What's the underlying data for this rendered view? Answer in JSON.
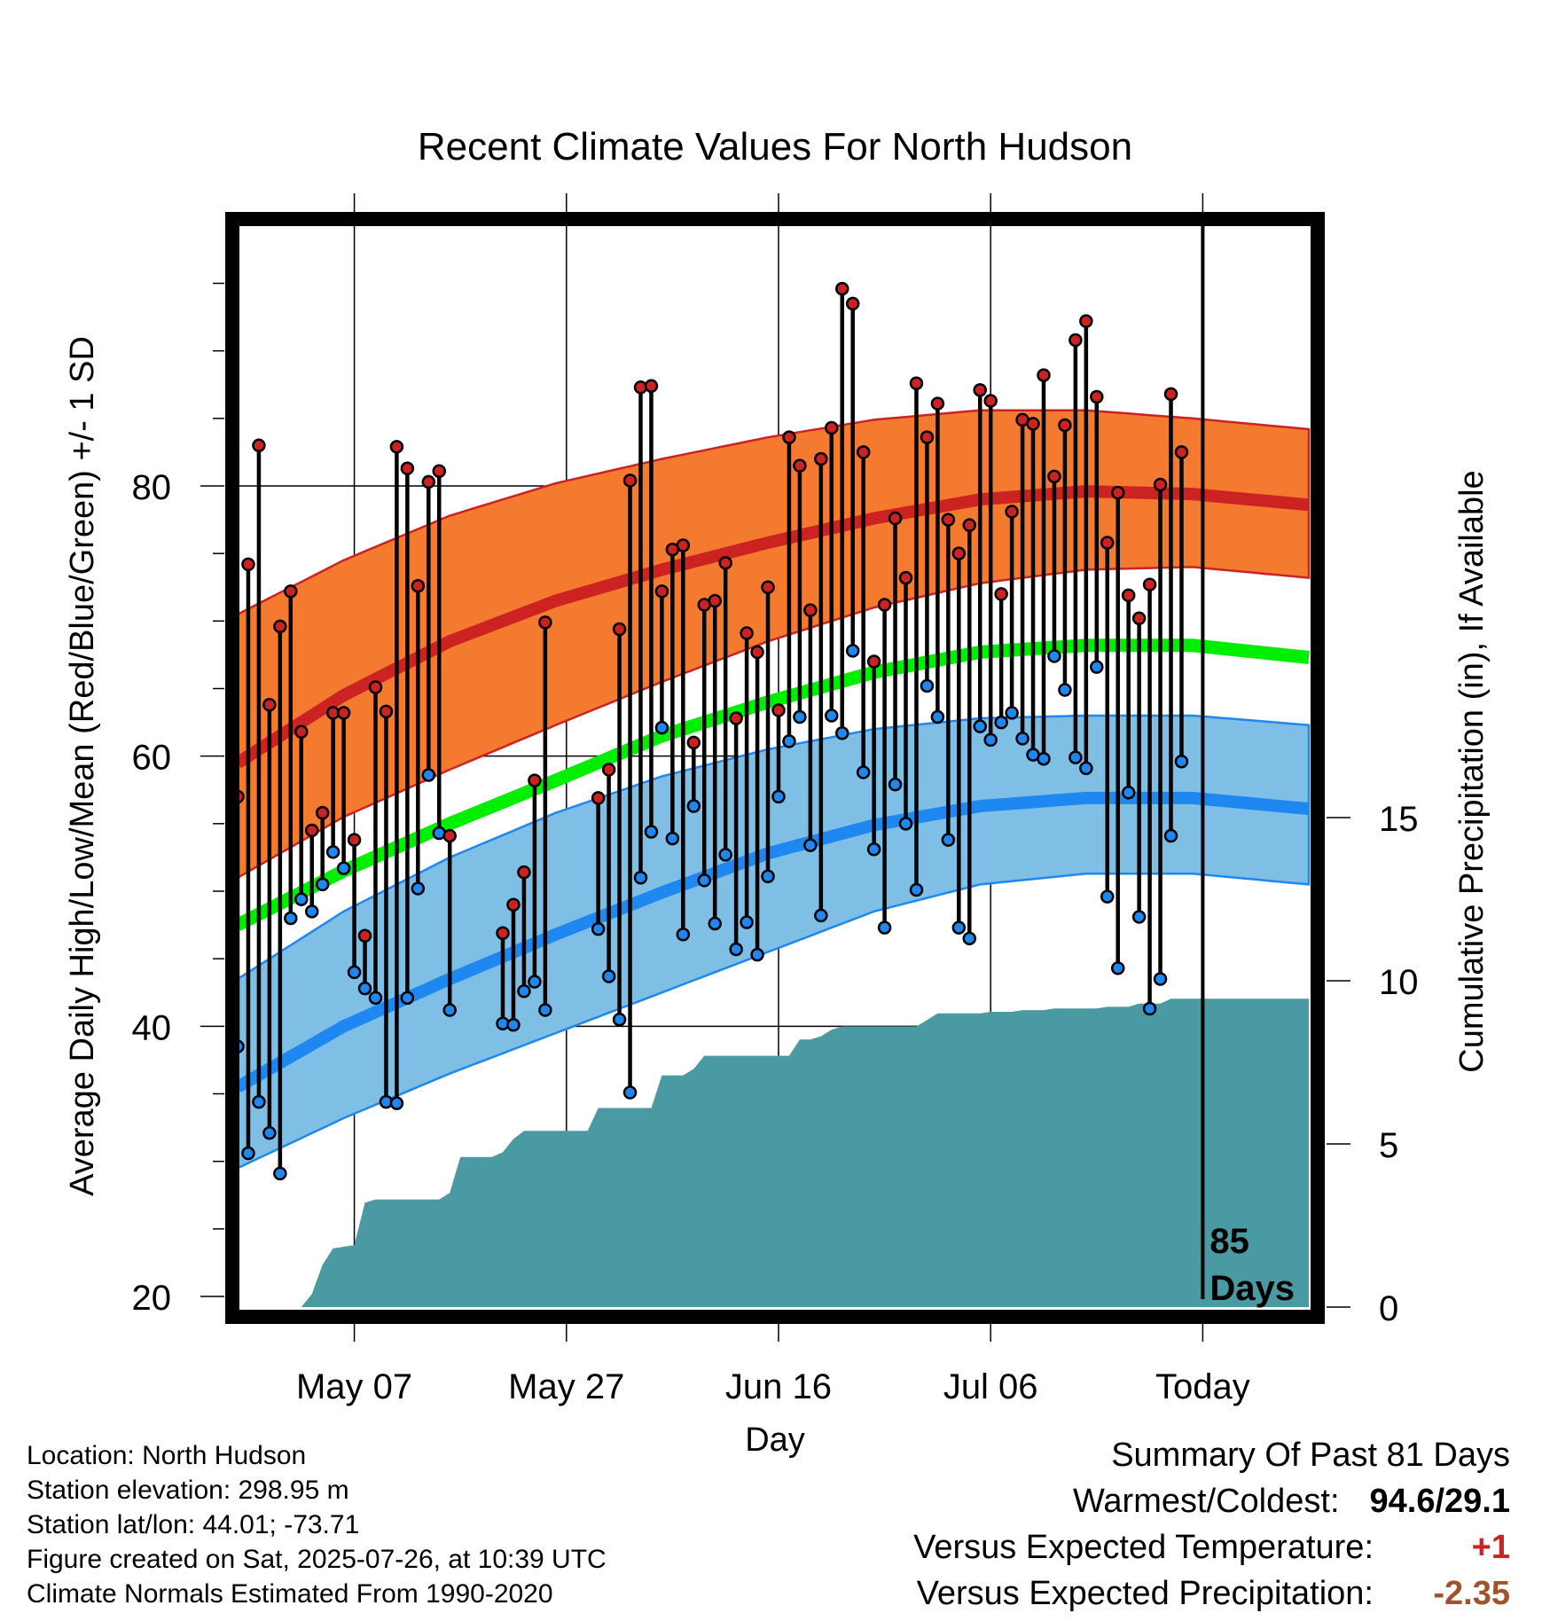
{
  "chart_data": {
    "type": "line",
    "title": "Recent Climate Values For North Hudson",
    "xlabel": "Day",
    "ylabel": "Average Daily High/Low/Mean (Red/Blue/Green) +/- 1 SD",
    "y2label": "Cumulative Precipitation (in), If Available",
    "ylim": [
      20,
      98
    ],
    "y2lim": [
      0,
      37
    ],
    "y_ticks": [
      "20",
      "40",
      "60",
      "80"
    ],
    "y2_ticks": [
      "0",
      "5",
      "10",
      "15"
    ],
    "x_ticks": [
      "May 07",
      "May 27",
      "Jun 16",
      "Jul 06",
      "Today"
    ],
    "x_tick_day": [
      11,
      31,
      51,
      71,
      91
    ],
    "x_range_day": [
      0,
      101
    ],
    "today_day": 91,
    "today_annotation": "85\nDays",
    "grid": true,
    "colors": {
      "high": "#cc2222",
      "high_band": "#f47a30",
      "low": "#1e88f0",
      "low_band": "#7fbfe6",
      "mean": "#00ee00",
      "precip": "#4a9aa3"
    },
    "normals": {
      "days": [
        0,
        10,
        20,
        30,
        40,
        50,
        60,
        70,
        80,
        90,
        101
      ],
      "high_mean": [
        59.5,
        64.5,
        68.5,
        71.5,
        73.8,
        75.8,
        77.6,
        79.0,
        79.6,
        79.4,
        78.6
      ],
      "high_upper": [
        70.5,
        74.5,
        77.8,
        80.2,
        82.0,
        83.6,
        84.9,
        85.6,
        85.6,
        85.0,
        84.2
      ],
      "high_lower": [
        51.0,
        55.5,
        59.0,
        62.3,
        65.5,
        68.5,
        71.0,
        72.8,
        73.8,
        74.0,
        73.2
      ],
      "mean": [
        47.5,
        51.5,
        55.0,
        58.2,
        61.5,
        64.0,
        66.2,
        67.7,
        68.2,
        68.2,
        67.3
      ],
      "low_mean": [
        35.5,
        40.0,
        43.5,
        46.8,
        49.9,
        52.8,
        54.9,
        56.3,
        56.9,
        56.9,
        56.1
      ],
      "low_upper": [
        43.5,
        48.5,
        52.5,
        55.8,
        58.5,
        60.5,
        62.0,
        62.8,
        63.0,
        63.0,
        62.3
      ],
      "low_lower": [
        29.5,
        33.2,
        36.5,
        39.5,
        42.5,
        45.5,
        48.5,
        50.5,
        51.3,
        51.3,
        50.5
      ]
    },
    "series": [
      {
        "name": "Daily High",
        "x": [
          0,
          1,
          2,
          3,
          4,
          5,
          6,
          7,
          8,
          9,
          10,
          11,
          12,
          13,
          14,
          15,
          16,
          17,
          18,
          19,
          20,
          25,
          26,
          27,
          28,
          29,
          34,
          35,
          36,
          37,
          38,
          39,
          40,
          41,
          42,
          43,
          44,
          45,
          46,
          47,
          48,
          49,
          50,
          51,
          52,
          53,
          54,
          55,
          56,
          57,
          58,
          59,
          60,
          61,
          62,
          63,
          64,
          65,
          66,
          67,
          68,
          69,
          70,
          71,
          72,
          73,
          74,
          75,
          76,
          77,
          78,
          79,
          80,
          81,
          82,
          83,
          84,
          85,
          86,
          87,
          88,
          89
        ],
        "values": [
          57.0,
          74.2,
          83.0,
          63.8,
          69.6,
          72.2,
          61.8,
          54.5,
          55.8,
          63.2,
          63.2,
          53.8,
          46.7,
          65.1,
          63.3,
          82.9,
          81.3,
          72.6,
          80.3,
          81.1,
          54.1,
          46.9,
          49.0,
          51.4,
          58.2,
          69.9,
          56.9,
          59.0,
          69.4,
          80.4,
          87.3,
          87.4,
          72.2,
          75.3,
          75.6,
          61.0,
          71.2,
          71.5,
          74.3,
          62.8,
          69.1,
          67.7,
          72.5,
          63.4,
          83.6,
          81.5,
          70.8,
          82.0,
          84.3,
          94.6,
          93.5,
          82.5,
          67.0,
          71.2,
          77.6,
          73.2,
          87.6,
          83.6,
          86.1,
          77.5,
          75.0,
          77.1,
          87.1,
          86.3,
          72.0,
          78.1,
          84.9,
          84.6,
          88.2,
          80.7,
          84.5,
          90.8,
          92.2,
          86.6,
          75.8,
          79.5,
          71.9,
          70.2,
          72.7,
          80.1,
          86.8,
          82.5
        ]
      },
      {
        "name": "Daily Low",
        "x": [
          0,
          1,
          2,
          3,
          4,
          5,
          6,
          7,
          8,
          9,
          10,
          11,
          12,
          13,
          14,
          15,
          16,
          17,
          18,
          19,
          20,
          25,
          26,
          27,
          28,
          29,
          34,
          35,
          36,
          37,
          38,
          39,
          40,
          41,
          42,
          43,
          44,
          45,
          46,
          47,
          48,
          49,
          50,
          51,
          52,
          53,
          54,
          55,
          56,
          57,
          58,
          59,
          60,
          61,
          62,
          63,
          64,
          65,
          66,
          67,
          68,
          69,
          70,
          71,
          72,
          73,
          74,
          75,
          76,
          77,
          78,
          79,
          80,
          81,
          82,
          83,
          84,
          85,
          86,
          87,
          88,
          89
        ],
        "values": [
          38.5,
          30.6,
          34.4,
          32.1,
          29.1,
          48.0,
          49.4,
          48.5,
          50.5,
          52.9,
          51.7,
          44.0,
          42.8,
          42.1,
          34.4,
          34.3,
          42.1,
          50.2,
          58.6,
          54.3,
          41.2,
          40.2,
          40.1,
          42.6,
          43.3,
          41.2,
          47.2,
          43.7,
          40.5,
          35.1,
          51.0,
          54.4,
          62.1,
          53.9,
          46.8,
          56.3,
          50.8,
          47.6,
          52.7,
          45.7,
          47.7,
          45.3,
          51.1,
          57.0,
          61.1,
          62.9,
          53.4,
          48.2,
          63.0,
          61.7,
          67.8,
          58.8,
          53.1,
          47.3,
          57.9,
          55.0,
          50.1,
          65.2,
          62.9,
          53.8,
          47.3,
          46.5,
          62.2,
          61.2,
          62.5,
          63.2,
          61.3,
          60.1,
          59.8,
          67.4,
          64.9,
          59.9,
          59.1,
          66.6,
          49.6,
          44.3,
          57.3,
          48.1,
          41.3,
          43.5,
          54.1,
          59.6
        ]
      },
      {
        "name": "Cumulative Precipitation",
        "x": [
          0,
          6,
          7,
          8,
          9,
          10,
          11,
          12,
          13,
          19,
          20,
          21,
          24,
          25,
          26,
          27,
          28,
          29,
          30,
          31,
          32,
          33,
          34,
          35,
          36,
          37,
          38,
          39,
          40,
          41,
          42,
          43,
          44,
          45,
          46,
          47,
          48,
          49,
          50,
          51,
          52,
          53,
          54,
          55,
          56,
          57,
          58,
          59,
          60,
          61,
          62,
          63,
          64,
          65,
          66,
          67,
          68,
          69,
          70,
          71,
          72,
          73,
          74,
          75,
          76,
          77,
          78,
          79,
          80,
          81,
          82,
          83,
          84,
          85,
          86,
          87,
          88,
          89,
          90,
          91,
          92,
          101
        ],
        "values": [
          0,
          0,
          0.4,
          1.3,
          1.8,
          1.85,
          1.9,
          3.2,
          3.3,
          3.3,
          3.5,
          4.6,
          4.6,
          4.75,
          5.15,
          5.4,
          5.4,
          5.4,
          5.4,
          5.4,
          5.4,
          5.4,
          6.1,
          6.1,
          6.1,
          6.1,
          6.1,
          6.1,
          7.1,
          7.1,
          7.1,
          7.3,
          7.7,
          7.7,
          7.7,
          7.7,
          7.7,
          7.7,
          7.7,
          7.7,
          7.7,
          8.2,
          8.2,
          8.3,
          8.5,
          8.6,
          8.6,
          8.6,
          8.6,
          8.6,
          8.6,
          8.6,
          8.6,
          8.8,
          9.0,
          9.0,
          9.0,
          9.0,
          9.0,
          9.05,
          9.05,
          9.05,
          9.1,
          9.1,
          9.1,
          9.15,
          9.15,
          9.15,
          9.15,
          9.15,
          9.2,
          9.2,
          9.2,
          9.3,
          9.3,
          9.3,
          9.45,
          9.45,
          9.45,
          9.45,
          9.45,
          9.45
        ]
      }
    ]
  },
  "info": {
    "location": "Location: North Hudson",
    "elevation": "Station elevation: 298.95 m",
    "latlon": "Station lat/lon: 44.01; -73.71",
    "created": "Figure created on Sat, 2025-07-26, at 10:39 UTC",
    "normals": "Climate Normals Estimated From 1990-2020"
  },
  "summary": {
    "title": "Summary Of Past 81 Days",
    "warmest_label": "Warmest/Coldest:",
    "warmest_value": "94.6/29.1",
    "temp_label": "Versus Expected Temperature:",
    "temp_value": "+1",
    "temp_color": "#cc2222",
    "precip_label": "Versus Expected Precipitation:",
    "precip_value": "-2.35",
    "precip_color": "#a0522d"
  }
}
